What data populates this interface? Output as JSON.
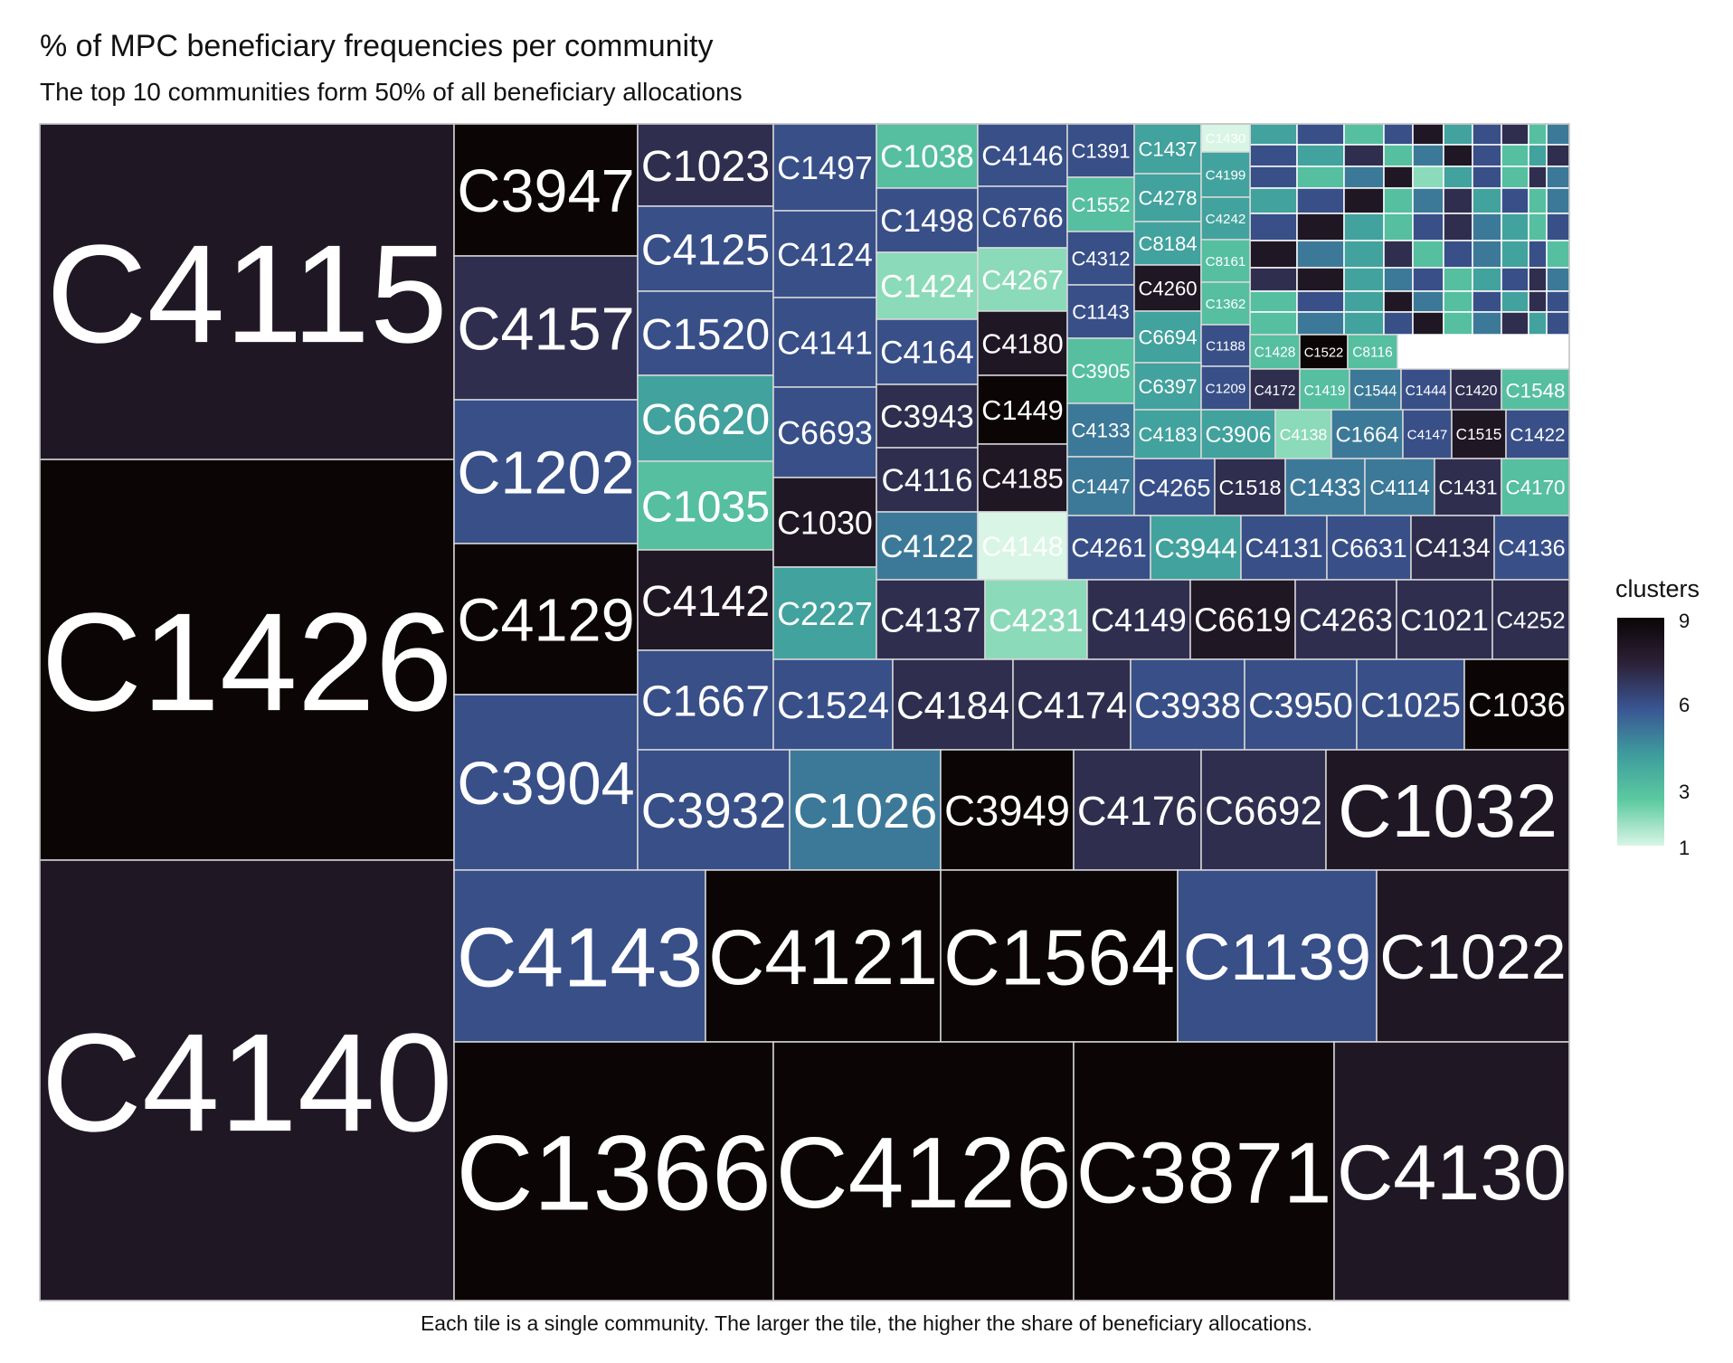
{
  "title": "% of MPC beneficiary frequencies per community",
  "subtitle": "The top 10 communities form 50% of all beneficiary allocations",
  "caption": "Each tile is a single community. The larger the tile, the higher the share of beneficiary allocations.",
  "legend": {
    "title": "clusters",
    "ticks": [
      "9",
      "6",
      "3",
      "1"
    ],
    "colors": [
      "#0b0505",
      "#2c2138",
      "#3a5593",
      "#3e9c9d",
      "#5ccaa0",
      "#d8f5e6"
    ]
  },
  "chart_data": {
    "type": "treemap",
    "color_variable": "clusters",
    "color_range": [
      1,
      9
    ],
    "tiles": [
      {
        "label": "C4115",
        "cluster": 8
      },
      {
        "label": "C1426",
        "cluster": 9
      },
      {
        "label": "C4140",
        "cluster": 8
      },
      {
        "label": "C3947",
        "cluster": 9
      },
      {
        "label": "C4157",
        "cluster": 7
      },
      {
        "label": "C1202",
        "cluster": 6
      },
      {
        "label": "C4129",
        "cluster": 9
      },
      {
        "label": "C3904",
        "cluster": 6
      },
      {
        "label": "C1023",
        "cluster": 7
      },
      {
        "label": "C4125",
        "cluster": 6
      },
      {
        "label": "C1520",
        "cluster": 6
      },
      {
        "label": "C6620",
        "cluster": 4
      },
      {
        "label": "C1035",
        "cluster": 3
      },
      {
        "label": "C4142",
        "cluster": 8
      },
      {
        "label": "C1667",
        "cluster": 6
      },
      {
        "label": "C1497",
        "cluster": 6
      },
      {
        "label": "C4124",
        "cluster": 6
      },
      {
        "label": "C4141",
        "cluster": 6
      },
      {
        "label": "C6693",
        "cluster": 6
      },
      {
        "label": "C1030",
        "cluster": 8
      },
      {
        "label": "C2227",
        "cluster": 4
      },
      {
        "label": "C1038",
        "cluster": 3
      },
      {
        "label": "C4146",
        "cluster": 6
      },
      {
        "label": "C1391",
        "cluster": 6
      },
      {
        "label": "C1437",
        "cluster": 4
      },
      {
        "label": "C1430",
        "cluster": 1
      },
      {
        "label": "C1498",
        "cluster": 6
      },
      {
        "label": "C6766",
        "cluster": 6
      },
      {
        "label": "C1552",
        "cluster": 3
      },
      {
        "label": "C4278",
        "cluster": 4
      },
      {
        "label": "C4199",
        "cluster": 4
      },
      {
        "label": "C1424",
        "cluster": 2
      },
      {
        "label": "C4267",
        "cluster": 2
      },
      {
        "label": "C4312",
        "cluster": 6
      },
      {
        "label": "C8184",
        "cluster": 4
      },
      {
        "label": "C4242",
        "cluster": 4
      },
      {
        "label": "C4164",
        "cluster": 6
      },
      {
        "label": "C4180",
        "cluster": 8
      },
      {
        "label": "C1143",
        "cluster": 6
      },
      {
        "label": "C4260",
        "cluster": 8
      },
      {
        "label": "C8161",
        "cluster": 3
      },
      {
        "label": "C1362",
        "cluster": 3
      },
      {
        "label": "C3943",
        "cluster": 7
      },
      {
        "label": "C1449",
        "cluster": 9
      },
      {
        "label": "C3905",
        "cluster": 3
      },
      {
        "label": "C6694",
        "cluster": 4
      },
      {
        "label": "C1188",
        "cluster": 6
      },
      {
        "label": "C4116",
        "cluster": 7
      },
      {
        "label": "C4185",
        "cluster": 8
      },
      {
        "label": "C4133",
        "cluster": 5
      },
      {
        "label": "C6397",
        "cluster": 4
      },
      {
        "label": "C1209",
        "cluster": 6
      },
      {
        "label": "C4122",
        "cluster": 5
      },
      {
        "label": "C4148",
        "cluster": 1
      },
      {
        "label": "C1447",
        "cluster": 5
      },
      {
        "label": "C1428",
        "cluster": 3
      },
      {
        "label": "C1522",
        "cluster": 9
      },
      {
        "label": "C8116",
        "cluster": 3
      },
      {
        "label": "C4172",
        "cluster": 7
      },
      {
        "label": "C1419",
        "cluster": 3
      },
      {
        "label": "C1544",
        "cluster": 5
      },
      {
        "label": "C1444",
        "cluster": 6
      },
      {
        "label": "C1420",
        "cluster": 7
      },
      {
        "label": "C1548",
        "cluster": 3
      },
      {
        "label": "C4183",
        "cluster": 4
      },
      {
        "label": "C3906",
        "cluster": 4
      },
      {
        "label": "C4138",
        "cluster": 2
      },
      {
        "label": "C1664",
        "cluster": 5
      },
      {
        "label": "C4147",
        "cluster": 6
      },
      {
        "label": "C1515",
        "cluster": 8
      },
      {
        "label": "C1422",
        "cluster": 6
      },
      {
        "label": "C4265",
        "cluster": 6
      },
      {
        "label": "C1518",
        "cluster": 7
      },
      {
        "label": "C1433",
        "cluster": 5
      },
      {
        "label": "C4114",
        "cluster": 5
      },
      {
        "label": "C1431",
        "cluster": 7
      },
      {
        "label": "C4170",
        "cluster": 3
      },
      {
        "label": "C4261",
        "cluster": 6
      },
      {
        "label": "C3944",
        "cluster": 4
      },
      {
        "label": "C4131",
        "cluster": 6
      },
      {
        "label": "C6631",
        "cluster": 6
      },
      {
        "label": "C4134",
        "cluster": 7
      },
      {
        "label": "C4136",
        "cluster": 6
      },
      {
        "label": "C4137",
        "cluster": 7
      },
      {
        "label": "C4231",
        "cluster": 2
      },
      {
        "label": "C4149",
        "cluster": 7
      },
      {
        "label": "C6619",
        "cluster": 8
      },
      {
        "label": "C4263",
        "cluster": 7
      },
      {
        "label": "C1021",
        "cluster": 7
      },
      {
        "label": "C4252",
        "cluster": 7
      },
      {
        "label": "C1524",
        "cluster": 6
      },
      {
        "label": "C4184",
        "cluster": 7
      },
      {
        "label": "C4174",
        "cluster": 7
      },
      {
        "label": "C3938",
        "cluster": 6
      },
      {
        "label": "C3950",
        "cluster": 6
      },
      {
        "label": "C1025",
        "cluster": 6
      },
      {
        "label": "C1036",
        "cluster": 9
      },
      {
        "label": "C3932",
        "cluster": 6
      },
      {
        "label": "C1026",
        "cluster": 5
      },
      {
        "label": "C3949",
        "cluster": 9
      },
      {
        "label": "C4176",
        "cluster": 7
      },
      {
        "label": "C6692",
        "cluster": 7
      },
      {
        "label": "C1032",
        "cluster": 8
      },
      {
        "label": "C4143",
        "cluster": 6
      },
      {
        "label": "C4121",
        "cluster": 9
      },
      {
        "label": "C1564",
        "cluster": 9
      },
      {
        "label": "C1139",
        "cluster": 6
      },
      {
        "label": "C1022",
        "cluster": 8
      },
      {
        "label": "C1366",
        "cluster": 9
      },
      {
        "label": "C4126",
        "cluster": 9
      },
      {
        "label": "C3871",
        "cluster": 9
      },
      {
        "label": "C4130",
        "cluster": 8
      }
    ]
  }
}
